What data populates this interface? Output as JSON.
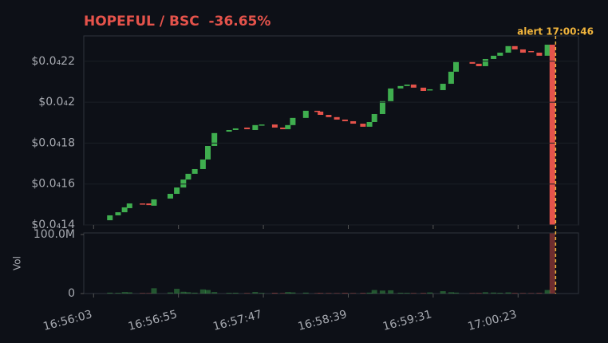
{
  "chart_data": {
    "type": "candlestick",
    "title": "HOPEFUL / BSC  -36.65%",
    "x": [
      "16:56:13",
      "16:56:18",
      "16:56:22",
      "16:56:25",
      "16:56:33",
      "16:56:37",
      "16:56:40",
      "16:56:50",
      "16:56:54",
      "16:56:58",
      "16:57:01",
      "16:57:05",
      "16:57:10",
      "16:57:13",
      "16:57:17",
      "16:57:26",
      "16:57:30",
      "16:57:37",
      "16:57:42",
      "16:57:46",
      "16:57:54",
      "16:57:59",
      "16:58:02",
      "16:58:05",
      "16:58:13",
      "16:58:20",
      "16:58:22",
      "16:58:27",
      "16:58:32",
      "16:58:37",
      "16:58:42",
      "16:58:48",
      "16:58:52",
      "16:58:55",
      "16:59:00",
      "16:59:05",
      "16:59:11",
      "16:59:15",
      "16:59:19",
      "16:59:25",
      "16:59:29",
      "16:59:37",
      "16:59:42",
      "16:59:45",
      "16:59:55",
      "16:59:59",
      "17:00:03",
      "17:00:08",
      "17:00:12",
      "17:00:17",
      "17:00:21",
      "17:00:26",
      "17:00:31",
      "17:00:36",
      "17:00:41",
      "17:00:44"
    ],
    "open": [
      1.423e-06,
      1.447e-06,
      1.462e-06,
      1.482e-06,
      1.505e-06,
      1.505e-06,
      1.494e-06,
      1.529e-06,
      1.552e-06,
      1.583e-06,
      1.622e-06,
      1.65e-06,
      1.673e-06,
      1.72e-06,
      1.786e-06,
      1.856e-06,
      1.864e-06,
      1.876e-06,
      1.864e-06,
      1.888e-06,
      1.891e-06,
      1.876e-06,
      1.868e-06,
      1.888e-06,
      1.923e-06,
      1.958e-06,
      1.954e-06,
      1.938e-06,
      1.927e-06,
      1.915e-06,
      1.907e-06,
      1.895e-06,
      1.88e-06,
      1.903e-06,
      1.942e-06,
      2.005e-06,
      2.067e-06,
      2.079e-06,
      2.086e-06,
      2.071e-06,
      2.059e-06,
      2.059e-06,
      2.09e-06,
      2.149e-06,
      2.196e-06,
      2.188e-06,
      2.176e-06,
      2.211e-06,
      2.227e-06,
      2.242e-06,
      2.274e-06,
      2.258e-06,
      2.25e-06,
      2.242e-06,
      2.227e-06,
      2.281e-06
    ],
    "close": [
      1.447e-06,
      1.462e-06,
      1.486e-06,
      1.505e-06,
      1.501e-06,
      1.497e-06,
      1.525e-06,
      1.552e-06,
      1.583e-06,
      1.622e-06,
      1.65e-06,
      1.673e-06,
      1.72e-06,
      1.786e-06,
      1.849e-06,
      1.864e-06,
      1.872e-06,
      1.868e-06,
      1.888e-06,
      1.891e-06,
      1.876e-06,
      1.868e-06,
      1.888e-06,
      1.923e-06,
      1.958e-06,
      1.954e-06,
      1.938e-06,
      1.927e-06,
      1.915e-06,
      1.907e-06,
      1.895e-06,
      1.88e-06,
      1.903e-06,
      1.942e-06,
      2.005e-06,
      2.067e-06,
      2.079e-06,
      2.086e-06,
      2.071e-06,
      2.055e-06,
      2.063e-06,
      2.09e-06,
      2.149e-06,
      2.196e-06,
      2.188e-06,
      2.176e-06,
      2.211e-06,
      2.227e-06,
      2.242e-06,
      2.274e-06,
      2.258e-06,
      2.242e-06,
      2.246e-06,
      2.227e-06,
      2.281e-06,
      1.38e-06
    ],
    "volume": [
      1500000,
      1200000,
      2500000,
      2000000,
      900000,
      800000,
      9000000,
      1800000,
      8000000,
      3000000,
      2200000,
      1500000,
      7000000,
      6000000,
      2500000,
      1200000,
      1400000,
      900000,
      2600000,
      1100000,
      1300000,
      800000,
      2400000,
      1900000,
      1600000,
      700000,
      1000000,
      900000,
      800000,
      1200000,
      900000,
      1100000,
      1500000,
      6000000,
      5000000,
      5500000,
      1400000,
      1200000,
      900000,
      1000000,
      1800000,
      4000000,
      2200000,
      1600000,
      900000,
      1000000,
      2200000,
      1700000,
      1300000,
      1900000,
      1000000,
      900000,
      800000,
      1100000,
      6000000,
      102000000
    ],
    "up_color": "#3fae4f",
    "down_color": "#e5534b",
    "xlim": [
      "16:55:57",
      "17:01:00"
    ],
    "xticks": [
      "16:56:03",
      "16:56:55",
      "16:57:47",
      "16:58:39",
      "16:59:31",
      "17:00:23"
    ],
    "ylim": [
      1.4e-06,
      2.324e-06
    ],
    "yticks": [
      {
        "value": 1.4e-06,
        "label": "$0.0₄14"
      },
      {
        "value": 1.6e-06,
        "label": "$0.0₄16"
      },
      {
        "value": 1.8e-06,
        "label": "$0.0₄18"
      },
      {
        "value": 2e-06,
        "label": "$0.0₄2"
      },
      {
        "value": 2.2e-06,
        "label": "$0.0₄22"
      }
    ],
    "volume_label": "Vol",
    "volume_ylim": [
      0,
      102700000
    ],
    "volume_yticks": [
      0,
      {
        "value": 100000000,
        "label": "100.0M"
      }
    ],
    "annotation": {
      "text": "alert 17:00:46",
      "x": "17:00:46",
      "color": "#f0b43c"
    },
    "grid": true
  }
}
